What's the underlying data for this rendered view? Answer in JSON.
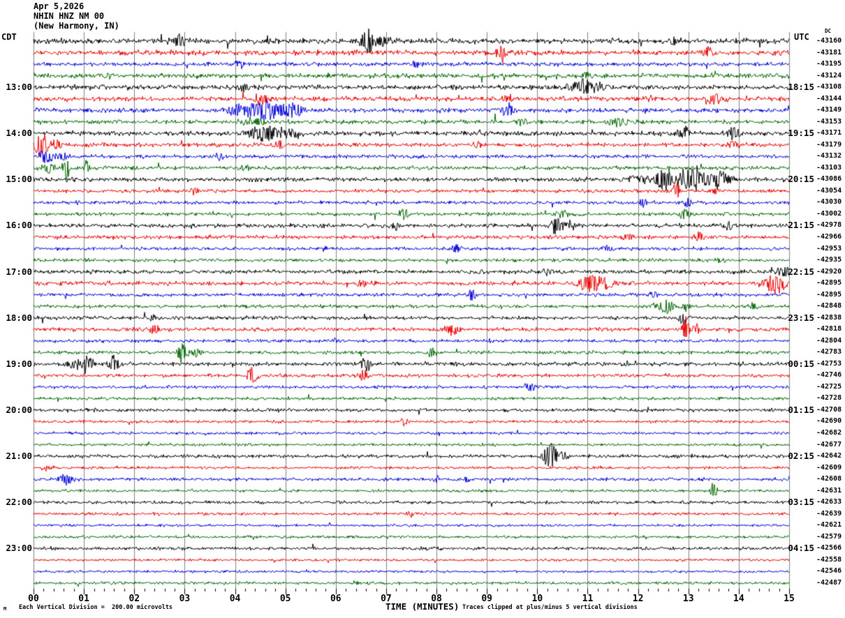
{
  "header": {
    "date": "Apr 5,2026",
    "station": "NHIN HNZ NM 00",
    "location": "(New Harmony, IN)",
    "left_timezone": "CDT",
    "right_timezone": "UTC",
    "dc_label": "DC"
  },
  "footer": {
    "corner_mark": "M",
    "scale_note": "Each Vertical Division =  200.00 microvolts",
    "xlabel": "TIME (MINUTES)",
    "clip_note": "Traces clipped at plus/minus 5 vertical divisions"
  },
  "axis": {
    "tick_labels": [
      "00",
      "01",
      "02",
      "03",
      "04",
      "05",
      "06",
      "07",
      "08",
      "09",
      "10",
      "11",
      "12",
      "13",
      "14",
      "15"
    ],
    "minutes_span": 15,
    "minor_ticks_per_minute": 5
  },
  "colors": {
    "trace_cycle": [
      "#000000",
      "#ee0000",
      "#0000dd",
      "#006600"
    ],
    "grid": "#808080",
    "background": "#ffffff",
    "text": "#000000"
  },
  "chart_data": {
    "type": "line",
    "subtype": "seismic-helicorder",
    "title": "NHIN HNZ NM 00 (New Harmony, IN) Apr 5,2026",
    "xlabel": "TIME (MINUTES)",
    "x_range_minutes": [
      0,
      15
    ],
    "minutes_per_row": 15,
    "microvolts_per_division": 200.0,
    "clip_divisions": 5,
    "left_times_cdt": [
      "13:00",
      "14:00",
      "15:00",
      "16:00",
      "17:00",
      "18:00",
      "19:00",
      "20:00",
      "21:00",
      "22:00",
      "23:00"
    ],
    "right_times_utc": [
      "18:15",
      "19:15",
      "20:15",
      "21:15",
      "22:15",
      "23:15",
      "00:15",
      "01:15",
      "02:15",
      "03:15",
      "04:15"
    ],
    "rows": [
      {
        "left": "",
        "right": "",
        "dc": -43160,
        "amp": 3.4,
        "bursts": [
          [
            2.9,
            9,
            0.12
          ],
          [
            6.62,
            20,
            0.09
          ],
          [
            6.9,
            7,
            0.2
          ],
          [
            12.7,
            6,
            0.08
          ]
        ]
      },
      {
        "left": "",
        "right": "",
        "dc": -43181,
        "amp": 3.2,
        "bursts": [
          [
            9.3,
            15,
            0.07
          ],
          [
            13.4,
            8,
            0.09
          ]
        ]
      },
      {
        "left": "",
        "right": "",
        "dc": -43195,
        "amp": 2.6,
        "bursts": [
          [
            4.1,
            5,
            0.1
          ],
          [
            7.6,
            4,
            0.1
          ]
        ]
      },
      {
        "left": "",
        "right": "",
        "dc": -43124,
        "amp": 3.0,
        "bursts": [
          [
            1.5,
            4,
            0.1
          ],
          [
            11.0,
            4,
            0.1
          ]
        ]
      },
      {
        "left": "13:00",
        "right": "18:15",
        "dc": -43108,
        "amp": 3.0,
        "bursts": [
          [
            4.2,
            9,
            0.1
          ],
          [
            10.9,
            11,
            0.22
          ],
          [
            11.25,
            7,
            0.1
          ]
        ]
      },
      {
        "left": "",
        "right": "",
        "dc": -43144,
        "amp": 3.0,
        "bursts": [
          [
            4.5,
            7,
            0.12
          ],
          [
            9.4,
            7,
            0.1
          ],
          [
            13.5,
            9,
            0.12
          ]
        ]
      },
      {
        "left": "",
        "right": "",
        "dc": -43149,
        "amp": 2.8,
        "bursts": [
          [
            4.0,
            8,
            0.12
          ],
          [
            4.55,
            15,
            0.3
          ],
          [
            5.15,
            11,
            0.18
          ],
          [
            9.4,
            12,
            0.1
          ]
        ]
      },
      {
        "left": "",
        "right": "",
        "dc": -43153,
        "amp": 2.6,
        "bursts": [
          [
            4.4,
            5,
            0.25
          ],
          [
            9.7,
            5,
            0.08
          ],
          [
            11.6,
            6,
            0.15
          ]
        ]
      },
      {
        "left": "14:00",
        "right": "19:15",
        "dc": -43171,
        "amp": 3.0,
        "bursts": [
          [
            4.6,
            13,
            0.25
          ],
          [
            5.15,
            8,
            0.15
          ],
          [
            12.9,
            11,
            0.08
          ],
          [
            13.9,
            10,
            0.1
          ]
        ]
      },
      {
        "left": "",
        "right": "",
        "dc": -43179,
        "amp": 2.6,
        "bursts": [
          [
            0.15,
            20,
            0.1
          ],
          [
            0.45,
            9,
            0.12
          ],
          [
            4.9,
            7,
            0.08
          ],
          [
            8.8,
            6,
            0.08
          ],
          [
            13.9,
            7,
            0.08
          ]
        ]
      },
      {
        "left": "",
        "right": "",
        "dc": -43132,
        "amp": 2.4,
        "bursts": [
          [
            0.25,
            12,
            0.1
          ],
          [
            0.6,
            6,
            0.12
          ],
          [
            3.7,
            6,
            0.08
          ]
        ]
      },
      {
        "left": "",
        "right": "",
        "dc": -43103,
        "amp": 2.4,
        "bursts": [
          [
            0.3,
            7,
            0.12
          ],
          [
            0.65,
            18,
            0.04
          ],
          [
            1.05,
            10,
            0.05
          ],
          [
            4.2,
            5,
            0.08
          ]
        ]
      },
      {
        "left": "15:00",
        "right": "20:15",
        "dc": -43086,
        "amp": 2.8,
        "bursts": [
          [
            12.0,
            7,
            0.15
          ],
          [
            12.55,
            15,
            0.2
          ],
          [
            13.1,
            17,
            0.25
          ],
          [
            13.65,
            13,
            0.15
          ]
        ]
      },
      {
        "left": "",
        "right": "",
        "dc": -43054,
        "amp": 2.2,
        "bursts": [
          [
            3.2,
            7,
            0.06
          ],
          [
            12.75,
            12,
            0.06
          ],
          [
            13.5,
            5,
            0.08
          ]
        ]
      },
      {
        "left": "",
        "right": "",
        "dc": -43030,
        "amp": 2.2,
        "bursts": [
          [
            12.1,
            6,
            0.06
          ],
          [
            13.0,
            7,
            0.06
          ]
        ]
      },
      {
        "left": "",
        "right": "",
        "dc": -43002,
        "amp": 2.2,
        "bursts": [
          [
            7.35,
            8,
            0.08
          ],
          [
            10.5,
            5,
            0.12
          ],
          [
            12.9,
            6,
            0.12
          ]
        ]
      },
      {
        "left": "16:00",
        "right": "21:15",
        "dc": -42978,
        "amp": 2.6,
        "bursts": [
          [
            7.2,
            7,
            0.08
          ],
          [
            10.4,
            17,
            0.1
          ],
          [
            10.65,
            7,
            0.12
          ],
          [
            13.8,
            6,
            0.08
          ]
        ]
      },
      {
        "left": "",
        "right": "",
        "dc": -42966,
        "amp": 2.4,
        "bursts": [
          [
            11.8,
            5,
            0.08
          ],
          [
            13.2,
            9,
            0.08
          ]
        ]
      },
      {
        "left": "",
        "right": "",
        "dc": -42953,
        "amp": 2.2,
        "bursts": [
          [
            8.4,
            7,
            0.08
          ],
          [
            11.4,
            5,
            0.1
          ]
        ]
      },
      {
        "left": "",
        "right": "",
        "dc": -42935,
        "amp": 2.2,
        "bursts": [
          [
            13.6,
            4,
            0.08
          ]
        ]
      },
      {
        "left": "17:00",
        "right": "22:15",
        "dc": -42920,
        "amp": 2.6,
        "bursts": [
          [
            10.2,
            6,
            0.08
          ],
          [
            14.9,
            8,
            0.12
          ]
        ]
      },
      {
        "left": "",
        "right": "",
        "dc": -42895,
        "amp": 2.6,
        "bursts": [
          [
            6.5,
            6,
            0.08
          ],
          [
            11.05,
            15,
            0.18
          ],
          [
            11.35,
            9,
            0.12
          ],
          [
            14.75,
            15,
            0.2
          ]
        ]
      },
      {
        "left": "",
        "right": "",
        "dc": -42895,
        "amp": 2.2,
        "bursts": [
          [
            8.7,
            10,
            0.06
          ],
          [
            12.3,
            5,
            0.08
          ]
        ]
      },
      {
        "left": "",
        "right": "",
        "dc": -42848,
        "amp": 2.2,
        "bursts": [
          [
            12.55,
            10,
            0.18
          ],
          [
            12.95,
            6,
            0.08
          ],
          [
            14.3,
            5,
            0.08
          ]
        ]
      },
      {
        "left": "18:00",
        "right": "23:15",
        "dc": -42838,
        "amp": 2.4,
        "bursts": [
          [
            2.4,
            5,
            0.08
          ],
          [
            12.9,
            8,
            0.08
          ]
        ]
      },
      {
        "left": "",
        "right": "",
        "dc": -42818,
        "amp": 2.4,
        "bursts": [
          [
            2.4,
            8,
            0.08
          ],
          [
            8.3,
            9,
            0.12
          ],
          [
            12.95,
            20,
            0.06
          ],
          [
            13.15,
            7,
            0.08
          ]
        ]
      },
      {
        "left": "",
        "right": "",
        "dc": -42804,
        "amp": 2.0,
        "bursts": [
          [
            6.0,
            4,
            0.08
          ]
        ]
      },
      {
        "left": "",
        "right": "",
        "dc": -42783,
        "amp": 2.2,
        "bursts": [
          [
            2.95,
            17,
            0.08
          ],
          [
            3.25,
            8,
            0.08
          ],
          [
            7.9,
            8,
            0.05
          ]
        ]
      },
      {
        "left": "19:00",
        "right": "00:15",
        "dc": -42753,
        "amp": 2.4,
        "bursts": [
          [
            0.8,
            7,
            0.15
          ],
          [
            1.05,
            15,
            0.1
          ],
          [
            1.6,
            13,
            0.08
          ],
          [
            6.6,
            12,
            0.08
          ]
        ]
      },
      {
        "left": "",
        "right": "",
        "dc": -42746,
        "amp": 2.2,
        "bursts": [
          [
            4.35,
            13,
            0.08
          ],
          [
            6.55,
            11,
            0.06
          ]
        ]
      },
      {
        "left": "",
        "right": "",
        "dc": -42725,
        "amp": 2.0,
        "bursts": [
          [
            9.85,
            8,
            0.08
          ]
        ]
      },
      {
        "left": "",
        "right": "",
        "dc": -42728,
        "amp": 2.0,
        "bursts": []
      },
      {
        "left": "20:00",
        "right": "01:15",
        "dc": -42708,
        "amp": 2.2,
        "bursts": []
      },
      {
        "left": "",
        "right": "",
        "dc": -42690,
        "amp": 1.8,
        "bursts": [
          [
            7.35,
            7,
            0.06
          ]
        ]
      },
      {
        "left": "",
        "right": "",
        "dc": -42682,
        "amp": 1.8,
        "bursts": []
      },
      {
        "left": "",
        "right": "",
        "dc": -42677,
        "amp": 1.8,
        "bursts": []
      },
      {
        "left": "21:00",
        "right": "02:15",
        "dc": -42642,
        "amp": 2.2,
        "bursts": [
          [
            10.25,
            20,
            0.1
          ],
          [
            10.5,
            9,
            0.08
          ]
        ]
      },
      {
        "left": "",
        "right": "",
        "dc": -42609,
        "amp": 1.8,
        "bursts": [
          [
            0.3,
            4,
            0.1
          ]
        ]
      },
      {
        "left": "",
        "right": "",
        "dc": -42608,
        "amp": 2.0,
        "bursts": [
          [
            0.65,
            8,
            0.12
          ],
          [
            8.0,
            6,
            0.06
          ],
          [
            8.6,
            5,
            0.06
          ]
        ]
      },
      {
        "left": "",
        "right": "",
        "dc": -42631,
        "amp": 1.8,
        "bursts": [
          [
            13.5,
            13,
            0.05
          ]
        ]
      },
      {
        "left": "22:00",
        "right": "03:15",
        "dc": -42633,
        "amp": 2.0,
        "bursts": []
      },
      {
        "left": "",
        "right": "",
        "dc": -42639,
        "amp": 1.8,
        "bursts": [
          [
            7.5,
            4,
            0.08
          ]
        ]
      },
      {
        "left": "",
        "right": "",
        "dc": -42621,
        "amp": 1.6,
        "bursts": []
      },
      {
        "left": "",
        "right": "",
        "dc": -42579,
        "amp": 1.8,
        "bursts": []
      },
      {
        "left": "23:00",
        "right": "04:15",
        "dc": -42566,
        "amp": 2.0,
        "bursts": []
      },
      {
        "left": "",
        "right": "",
        "dc": -42558,
        "amp": 1.6,
        "bursts": []
      },
      {
        "left": "",
        "right": "",
        "dc": -42546,
        "amp": 1.6,
        "bursts": []
      },
      {
        "left": "",
        "right": "",
        "dc": -42487,
        "amp": 1.8,
        "bursts": []
      }
    ]
  }
}
